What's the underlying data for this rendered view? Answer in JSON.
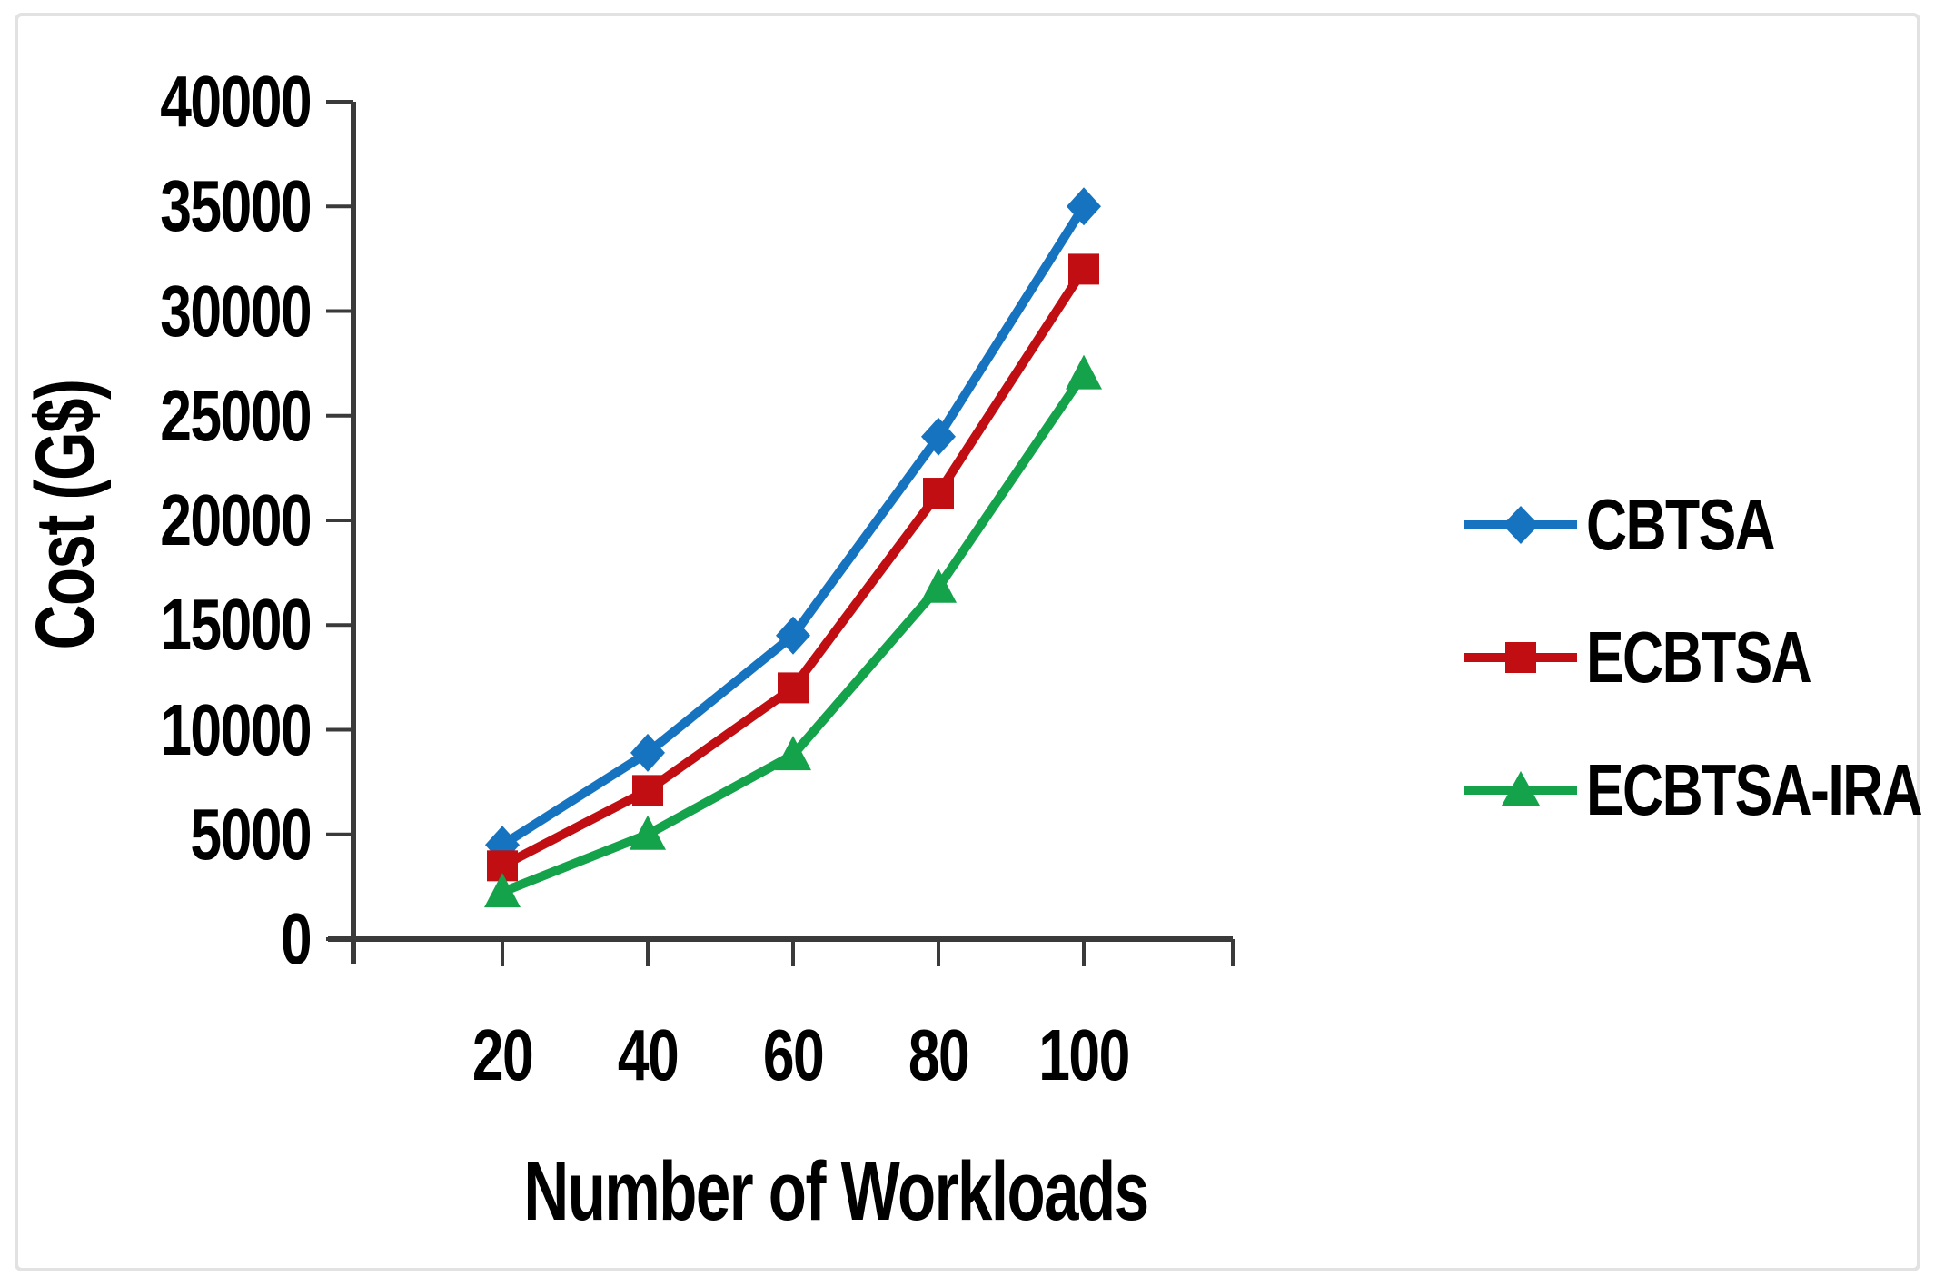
{
  "figure": {
    "background": "#ffffff",
    "border_color": "#e2e2e2",
    "axis_color": "#3a3a3a",
    "text_color": "#000000"
  },
  "chart_data": {
    "type": "line",
    "title": "",
    "xlabel": "Number of Workloads",
    "ylabel": "Cost (G$)",
    "x": [
      20,
      40,
      60,
      80,
      100
    ],
    "xtick_labels": [
      "20",
      "40",
      "60",
      "80",
      "100"
    ],
    "ytick_labels": [
      "0",
      "5000",
      "10000",
      "15000",
      "20000",
      "25000",
      "30000",
      "35000",
      "40000"
    ],
    "ylim": [
      0,
      40000
    ],
    "ytick_step": 5000,
    "grid": false,
    "legend_position": "right",
    "series": [
      {
        "name": "CBTSA",
        "color": "#1673c0",
        "marker": "diamond",
        "values": [
          4500,
          8900,
          14500,
          24000,
          35000
        ]
      },
      {
        "name": "ECBTSA",
        "color": "#c00e12",
        "marker": "square",
        "values": [
          3500,
          7100,
          12000,
          21300,
          32000
        ]
      },
      {
        "name": "ECBTSA-IRA",
        "color": "#14a24b",
        "marker": "triangle",
        "values": [
          2250,
          5000,
          8800,
          16800,
          27000
        ]
      }
    ]
  }
}
